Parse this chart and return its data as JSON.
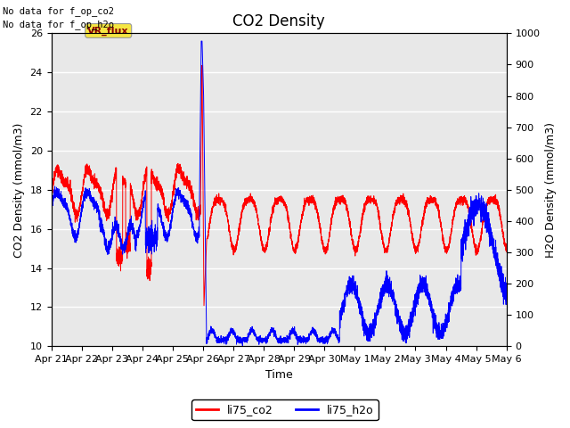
{
  "title": "CO2 Density",
  "xlabel": "Time",
  "ylabel_left": "CO2 Density (mmol/m3)",
  "ylabel_right": "H2O Density (mmol/m3)",
  "ylim_left": [
    10,
    26
  ],
  "ylim_right": [
    0,
    1000
  ],
  "yticks_left": [
    10,
    12,
    14,
    16,
    18,
    20,
    22,
    24,
    26
  ],
  "yticks_right": [
    0,
    100,
    200,
    300,
    400,
    500,
    600,
    700,
    800,
    900,
    1000
  ],
  "xtick_labels": [
    "Apr 21",
    "Apr 22",
    "Apr 23",
    "Apr 24",
    "Apr 25",
    "Apr 26",
    "Apr 27",
    "Apr 28",
    "Apr 29",
    "Apr 30",
    "May 1",
    "May 2",
    "May 3",
    "May 4",
    "May 5",
    "May 6"
  ],
  "text_annotations": [
    "No data for f_op_co2",
    "No data for f_op_h2o"
  ],
  "vr_flux_label": "VR_flux",
  "legend_labels": [
    "li75_co2",
    "li75_h2o"
  ],
  "line_colors": [
    "red",
    "blue"
  ],
  "bg_color": "#e8e8e8",
  "fig_bg_color": "#ffffff",
  "title_fontsize": 12,
  "axis_label_fontsize": 9,
  "tick_fontsize": 8
}
